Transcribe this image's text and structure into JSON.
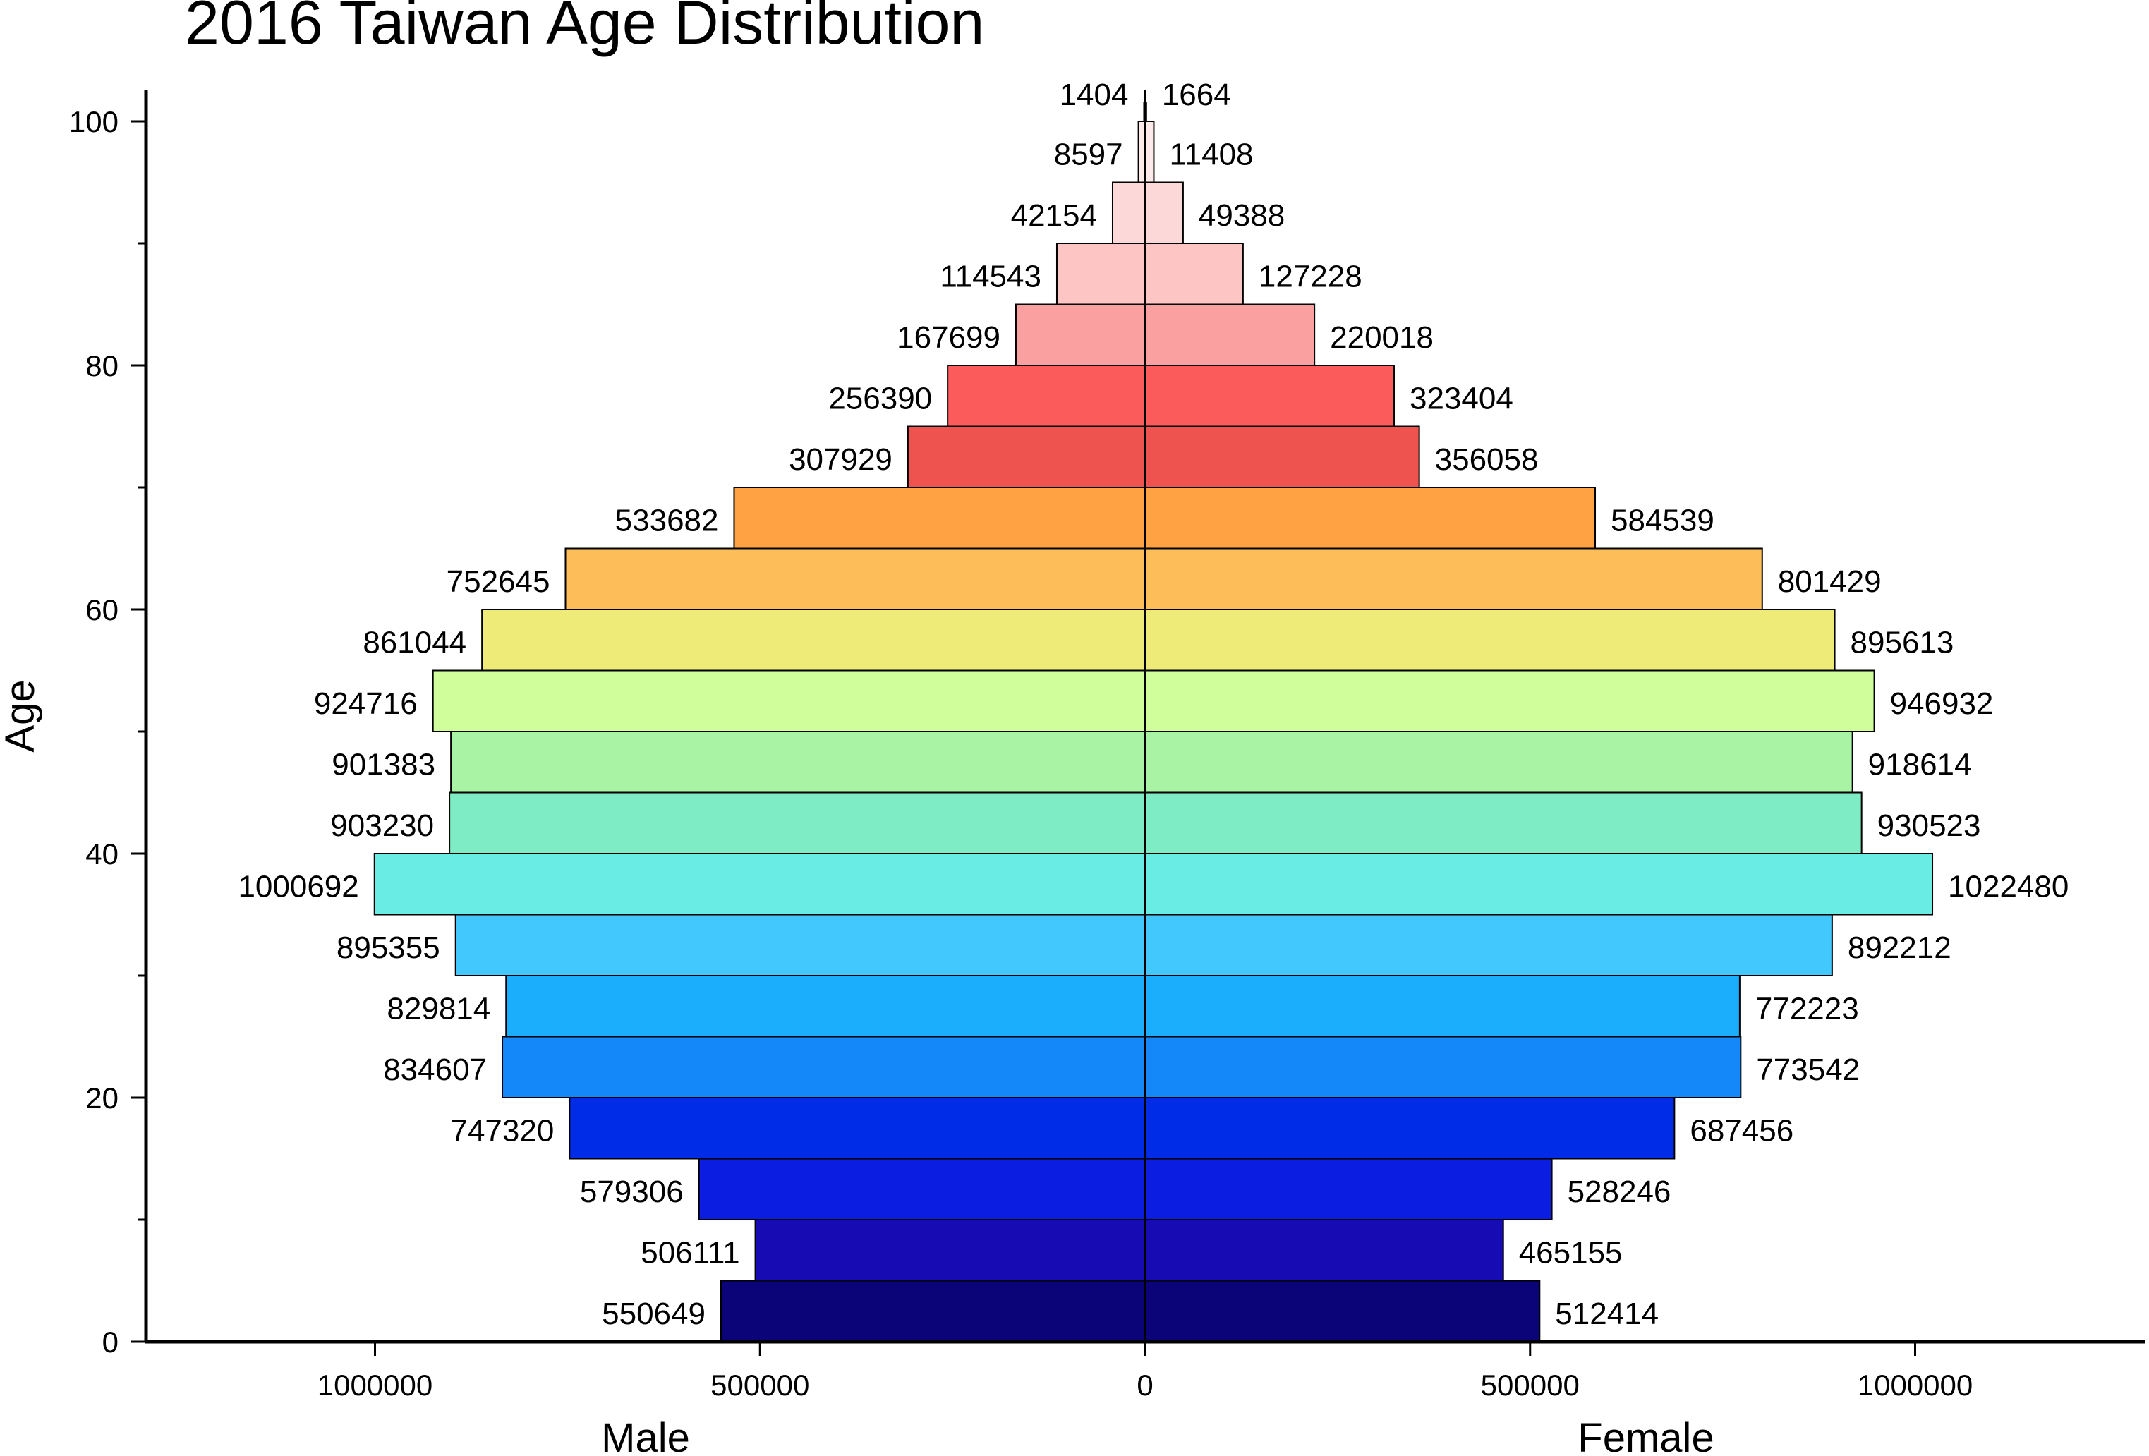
{
  "chart_data": {
    "type": "bar",
    "orientation": "horizontal",
    "title": "2016 Taiwan Age Distribution",
    "ylabel": "Age",
    "xlabel_left": "Male",
    "xlabel_right": "Female",
    "xlim": [
      -1250000,
      1250000
    ],
    "ylim": [
      0,
      102
    ],
    "y_ticks": [
      0,
      20,
      40,
      60,
      80,
      100
    ],
    "x_tick_values": [
      -1000000,
      -500000,
      0,
      500000,
      1000000
    ],
    "x_tick_labels": [
      "1000000",
      "500000",
      "0",
      "500000",
      "1000000"
    ],
    "age_groups": [
      {
        "age_start": 0,
        "male": 550649,
        "female": 512414,
        "color": "#0b0479"
      },
      {
        "age_start": 5,
        "male": 506111,
        "female": 465155,
        "color": "#170bb3"
      },
      {
        "age_start": 10,
        "male": 579306,
        "female": 528246,
        "color": "#0a1de0"
      },
      {
        "age_start": 15,
        "male": 747320,
        "female": 687456,
        "color": "#002ce8"
      },
      {
        "age_start": 20,
        "male": 834607,
        "female": 773542,
        "color": "#1488f8"
      },
      {
        "age_start": 25,
        "male": 829814,
        "female": 772223,
        "color": "#1aaefc"
      },
      {
        "age_start": 30,
        "male": 895355,
        "female": 892212,
        "color": "#42c8fc"
      },
      {
        "age_start": 35,
        "male": 1000692,
        "female": 1022480,
        "color": "#68ece3"
      },
      {
        "age_start": 40,
        "male": 903230,
        "female": 930523,
        "color": "#7eedc6"
      },
      {
        "age_start": 45,
        "male": 901383,
        "female": 918614,
        "color": "#a9f4a4"
      },
      {
        "age_start": 50,
        "male": 924716,
        "female": 946932,
        "color": "#cffe9a"
      },
      {
        "age_start": 55,
        "male": 861044,
        "female": 895613,
        "color": "#eeeb78"
      },
      {
        "age_start": 60,
        "male": 752645,
        "female": 801429,
        "color": "#fdbd58"
      },
      {
        "age_start": 65,
        "male": 533682,
        "female": 584539,
        "color": "#fea244"
      },
      {
        "age_start": 70,
        "male": 307929,
        "female": 356058,
        "color": "#ef5350"
      },
      {
        "age_start": 75,
        "male": 256390,
        "female": 323404,
        "color": "#fc5b5b"
      },
      {
        "age_start": 80,
        "male": 167699,
        "female": 220018,
        "color": "#fba0a0"
      },
      {
        "age_start": 85,
        "male": 114543,
        "female": 127228,
        "color": "#fec5c5"
      },
      {
        "age_start": 90,
        "male": 42154,
        "female": 49388,
        "color": "#fdd8d8"
      },
      {
        "age_start": 95,
        "male": 8597,
        "female": 11408,
        "color": "#ffeaea"
      },
      {
        "age_start": 100,
        "male": 1404,
        "female": 1664,
        "color": "#ffffff"
      }
    ],
    "grid": false,
    "legend": "none"
  }
}
